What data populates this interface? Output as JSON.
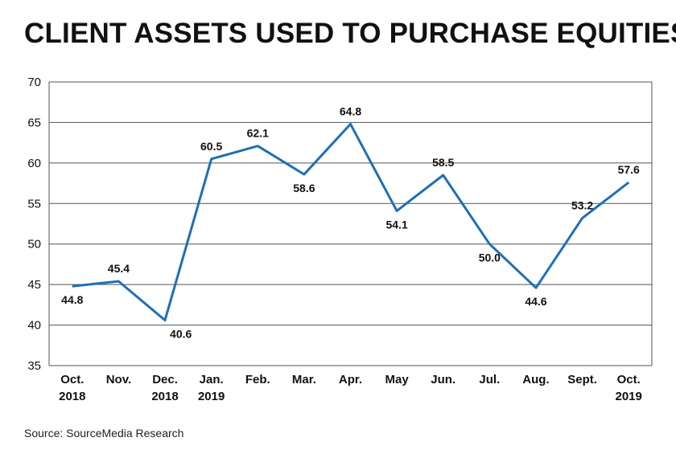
{
  "title": "CLIENT ASSETS USED TO PURCHASE EQUITIES",
  "source": "Source: SourceMedia Research",
  "chart_data": {
    "type": "line",
    "title": "CLIENT ASSETS USED TO PURCHASE EQUITIES",
    "xlabel": "",
    "ylabel": "",
    "ylim": [
      35,
      70
    ],
    "yticks": [
      35,
      40,
      45,
      50,
      55,
      60,
      65,
      70
    ],
    "grid": true,
    "line_color": "#1f6fb5",
    "categories": [
      [
        "Oct.",
        "2018"
      ],
      [
        "Nov."
      ],
      [
        "Dec.",
        "2018"
      ],
      [
        "Jan.",
        "2019"
      ],
      [
        "Feb."
      ],
      [
        "Mar."
      ],
      [
        "Apr."
      ],
      [
        "May"
      ],
      [
        "Jun."
      ],
      [
        "Jul."
      ],
      [
        "Aug."
      ],
      [
        "Sept."
      ],
      [
        "Oct.",
        "2019"
      ]
    ],
    "series": [
      {
        "values": [
          44.8,
          45.4,
          40.6,
          60.5,
          62.1,
          58.6,
          64.8,
          54.1,
          58.5,
          50.0,
          44.6,
          53.2,
          57.6
        ],
        "labels": [
          "44.8",
          "45.4",
          "40.6",
          "60.5",
          "62.1",
          "58.6",
          "64.8",
          "54.1",
          "58.5",
          "50.0",
          "44.6",
          "53.2",
          "57.6"
        ]
      }
    ]
  }
}
